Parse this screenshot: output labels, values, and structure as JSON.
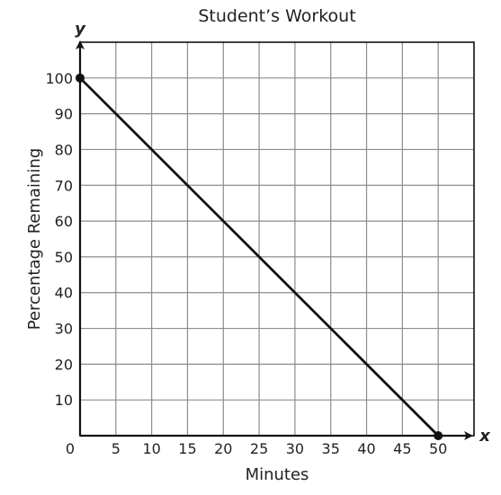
{
  "chart_data": {
    "type": "line",
    "title": "Student’s Workout",
    "xlabel": "Minutes",
    "ylabel": "Percentage Remaining",
    "x_axis_letter": "x",
    "y_axis_letter": "y",
    "origin_label": "0",
    "xlim": [
      0,
      55
    ],
    "ylim": [
      0,
      110
    ],
    "x_ticks": [
      5,
      10,
      15,
      20,
      25,
      30,
      35,
      40,
      45,
      50
    ],
    "y_ticks": [
      10,
      20,
      30,
      40,
      50,
      60,
      70,
      80,
      90,
      100
    ],
    "grid": true,
    "series": [
      {
        "points": [
          {
            "x": 0,
            "y": 100
          },
          {
            "x": 50,
            "y": 0
          }
        ],
        "endpoints_marked": true
      }
    ]
  }
}
